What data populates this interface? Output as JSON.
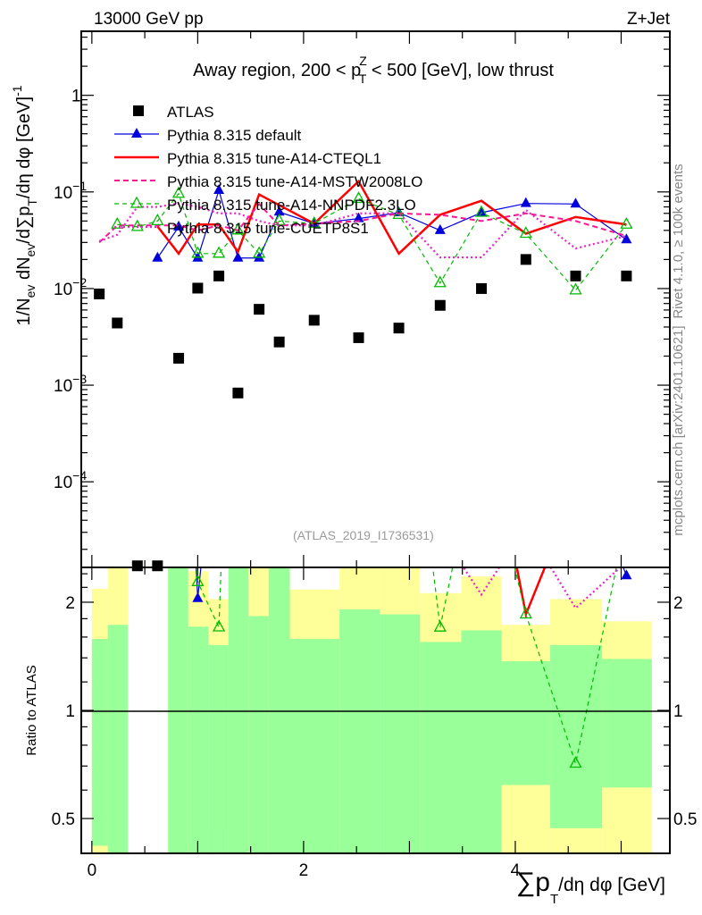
{
  "header": {
    "left": "13000 GeV pp",
    "right": "Z+Jet"
  },
  "side": {
    "rivet": "Rivet 4.1.0, ≥ 100k events",
    "mcplots": "mcplots.cern.ch [arXiv:2401.10621]"
  },
  "watermark": "(ATLAS_2019_I1736531)",
  "chart_data": {
    "type": "line",
    "title": {
      "pre": "Away region, 200 < p",
      "sup": "Z",
      "sub": "T",
      "post": " < 500 [GeV], low thrust"
    },
    "ylabel": {
      "a": "1/N",
      "a_sub": "ev",
      "b": " dN",
      "b_sub": "ev",
      "c": "/d∑p",
      "c_sub": "T",
      "d": "/dη dφ  [GeV]",
      "d_sup": "-1"
    },
    "xlabel": {
      "a": "∑p",
      "a_sub": "T",
      "b": "/dη dφ [GeV]"
    },
    "ratio_ylabel": "Ratio to ATLAS",
    "yscale": "log",
    "ylim": [
      1.3e-05,
      4.6
    ],
    "xlim": [
      -0.1,
      5.46
    ],
    "ratio_ylim": [
      0.4,
      2.5
    ],
    "yticks": [
      {
        "v": 1,
        "base": "1",
        "exp": ""
      },
      {
        "v": 0.1,
        "base": "10",
        "exp": "−1"
      },
      {
        "v": 0.01,
        "base": "10",
        "exp": "−2"
      },
      {
        "v": 0.001,
        "base": "10",
        "exp": "−3"
      },
      {
        "v": 0.0001,
        "base": "10",
        "exp": "−4"
      }
    ],
    "xticks": [
      {
        "v": 0,
        "label": "0"
      },
      {
        "v": 2,
        "label": "2"
      },
      {
        "v": 4,
        "label": "4"
      }
    ],
    "ratio_ticks": [
      {
        "v": 2,
        "label": "2"
      },
      {
        "v": 1,
        "label": "1"
      },
      {
        "v": 0.5,
        "label": "0.5"
      }
    ],
    "bin_edges": [
      0,
      0.15,
      0.34,
      0.53,
      0.72,
      0.91,
      1.1,
      1.29,
      1.48,
      1.67,
      1.87,
      2.34,
      2.72,
      3.1,
      3.49,
      3.87,
      4.33,
      4.82,
      5.29
    ],
    "x": [
      0.07,
      0.24,
      0.43,
      0.62,
      0.82,
      1.0,
      1.2,
      1.38,
      1.58,
      1.77,
      2.1,
      2.52,
      2.9,
      3.29,
      3.68,
      4.1,
      4.57,
      5.05
    ],
    "data": {
      "name": "ATLAS",
      "values": [
        0.0088,
        0.0044,
        1.35e-05,
        1.35e-05,
        0.0019,
        0.0101,
        0.0135,
        0.00083,
        0.0061,
        0.0028,
        0.0047,
        0.0031,
        0.0039,
        0.0067,
        0.01,
        0.02,
        0.0135,
        0.0135
      ]
    },
    "bands": {
      "green": [
        [
          0.42,
          1.58
        ],
        [
          0.3,
          1.73
        ],
        null,
        null,
        [
          0.3,
          2.6
        ],
        [
          0.3,
          1.71
        ],
        [
          0.3,
          1.52
        ],
        [
          0.3,
          2.6
        ],
        [
          0.3,
          1.83
        ],
        [
          0.3,
          2.6
        ],
        [
          0.3,
          1.58
        ],
        [
          0.3,
          1.91
        ],
        [
          0.3,
          1.85
        ],
        [
          0.3,
          1.55
        ],
        [
          0.3,
          1.67
        ],
        [
          0.62,
          1.37
        ],
        [
          0.47,
          1.52
        ],
        [
          0.61,
          1.39
        ]
      ],
      "yellow": [
        [
          0.3,
          2.18
        ],
        [
          0.3,
          2.6
        ],
        null,
        null,
        [
          0.3,
          2.6
        ],
        [
          0.3,
          2.44
        ],
        [
          0.47,
          2.04
        ],
        [
          0.3,
          2.6
        ],
        [
          0.3,
          2.6
        ],
        [
          0.3,
          2.6
        ],
        [
          0.42,
          2.17
        ],
        [
          0.3,
          2.6
        ],
        [
          0.3,
          2.6
        ],
        [
          0.44,
          2.12
        ],
        [
          0.3,
          2.36
        ],
        [
          0.3,
          1.73
        ],
        [
          0.3,
          2.04
        ],
        [
          0.3,
          1.77
        ]
      ]
    },
    "series": [
      {
        "name": "Pythia 8.315 default",
        "color": "#0000dd",
        "dash": "",
        "width": 1.2,
        "marker": "tri-filled",
        "values": [
          null,
          null,
          null,
          0.0207,
          0.0435,
          0.0207,
          0.104,
          0.0207,
          0.0207,
          0.062,
          0.047,
          0.053,
          0.061,
          0.04,
          0.061,
          0.076,
          0.075,
          0.032
        ]
      },
      {
        "name": "Pythia 8.315 tune-A14-CTEQL1",
        "color": "#ff0000",
        "dash": "",
        "width": 2.5,
        "marker": "none",
        "values": [
          null,
          null,
          null,
          0.044,
          0.023,
          0.046,
          0.046,
          0.024,
          0.094,
          0.073,
          0.047,
          0.129,
          0.023,
          0.058,
          0.081,
          0.037,
          0.055,
          0.046
        ]
      },
      {
        "name": "Pythia 8.315 tune-A14-MSTW2008LO",
        "color": "#ff1493",
        "dash": "6,4",
        "width": 2,
        "marker": "none",
        "values": [
          0.03,
          0.045,
          0.045,
          0.045,
          0.045,
          0.04,
          0.045,
          0.04,
          0.075,
          0.045,
          0.047,
          0.05,
          0.06,
          0.058,
          0.05,
          0.06,
          0.05,
          0.035
        ]
      },
      {
        "name": "Pythia 8.315 tune-A14-NNPDF2.3LO",
        "color": "#00bb00",
        "dash": "5,4",
        "width": 1.2,
        "marker": "tri-open",
        "values": [
          null,
          0.046,
          0.0435,
          0.05,
          0.096,
          0.023,
          0.023,
          0.04,
          0.023,
          0.05,
          0.047,
          0.085,
          0.058,
          0.0114,
          0.061,
          0.037,
          0.0096,
          0.046
        ]
      },
      {
        "name": "Pythia 8.315 tune-CUETP8S1",
        "color": "#ee22cc",
        "dash": "2,3",
        "width": 2.2,
        "marker": "none",
        "values": [
          0.031,
          0.036,
          0.07,
          0.07,
          0.076,
          0.07,
          0.06,
          0.06,
          0.05,
          0.045,
          0.045,
          0.06,
          0.06,
          0.021,
          0.021,
          0.065,
          0.026,
          0.035
        ]
      }
    ],
    "legend": {
      "placement": "top-left"
    }
  }
}
